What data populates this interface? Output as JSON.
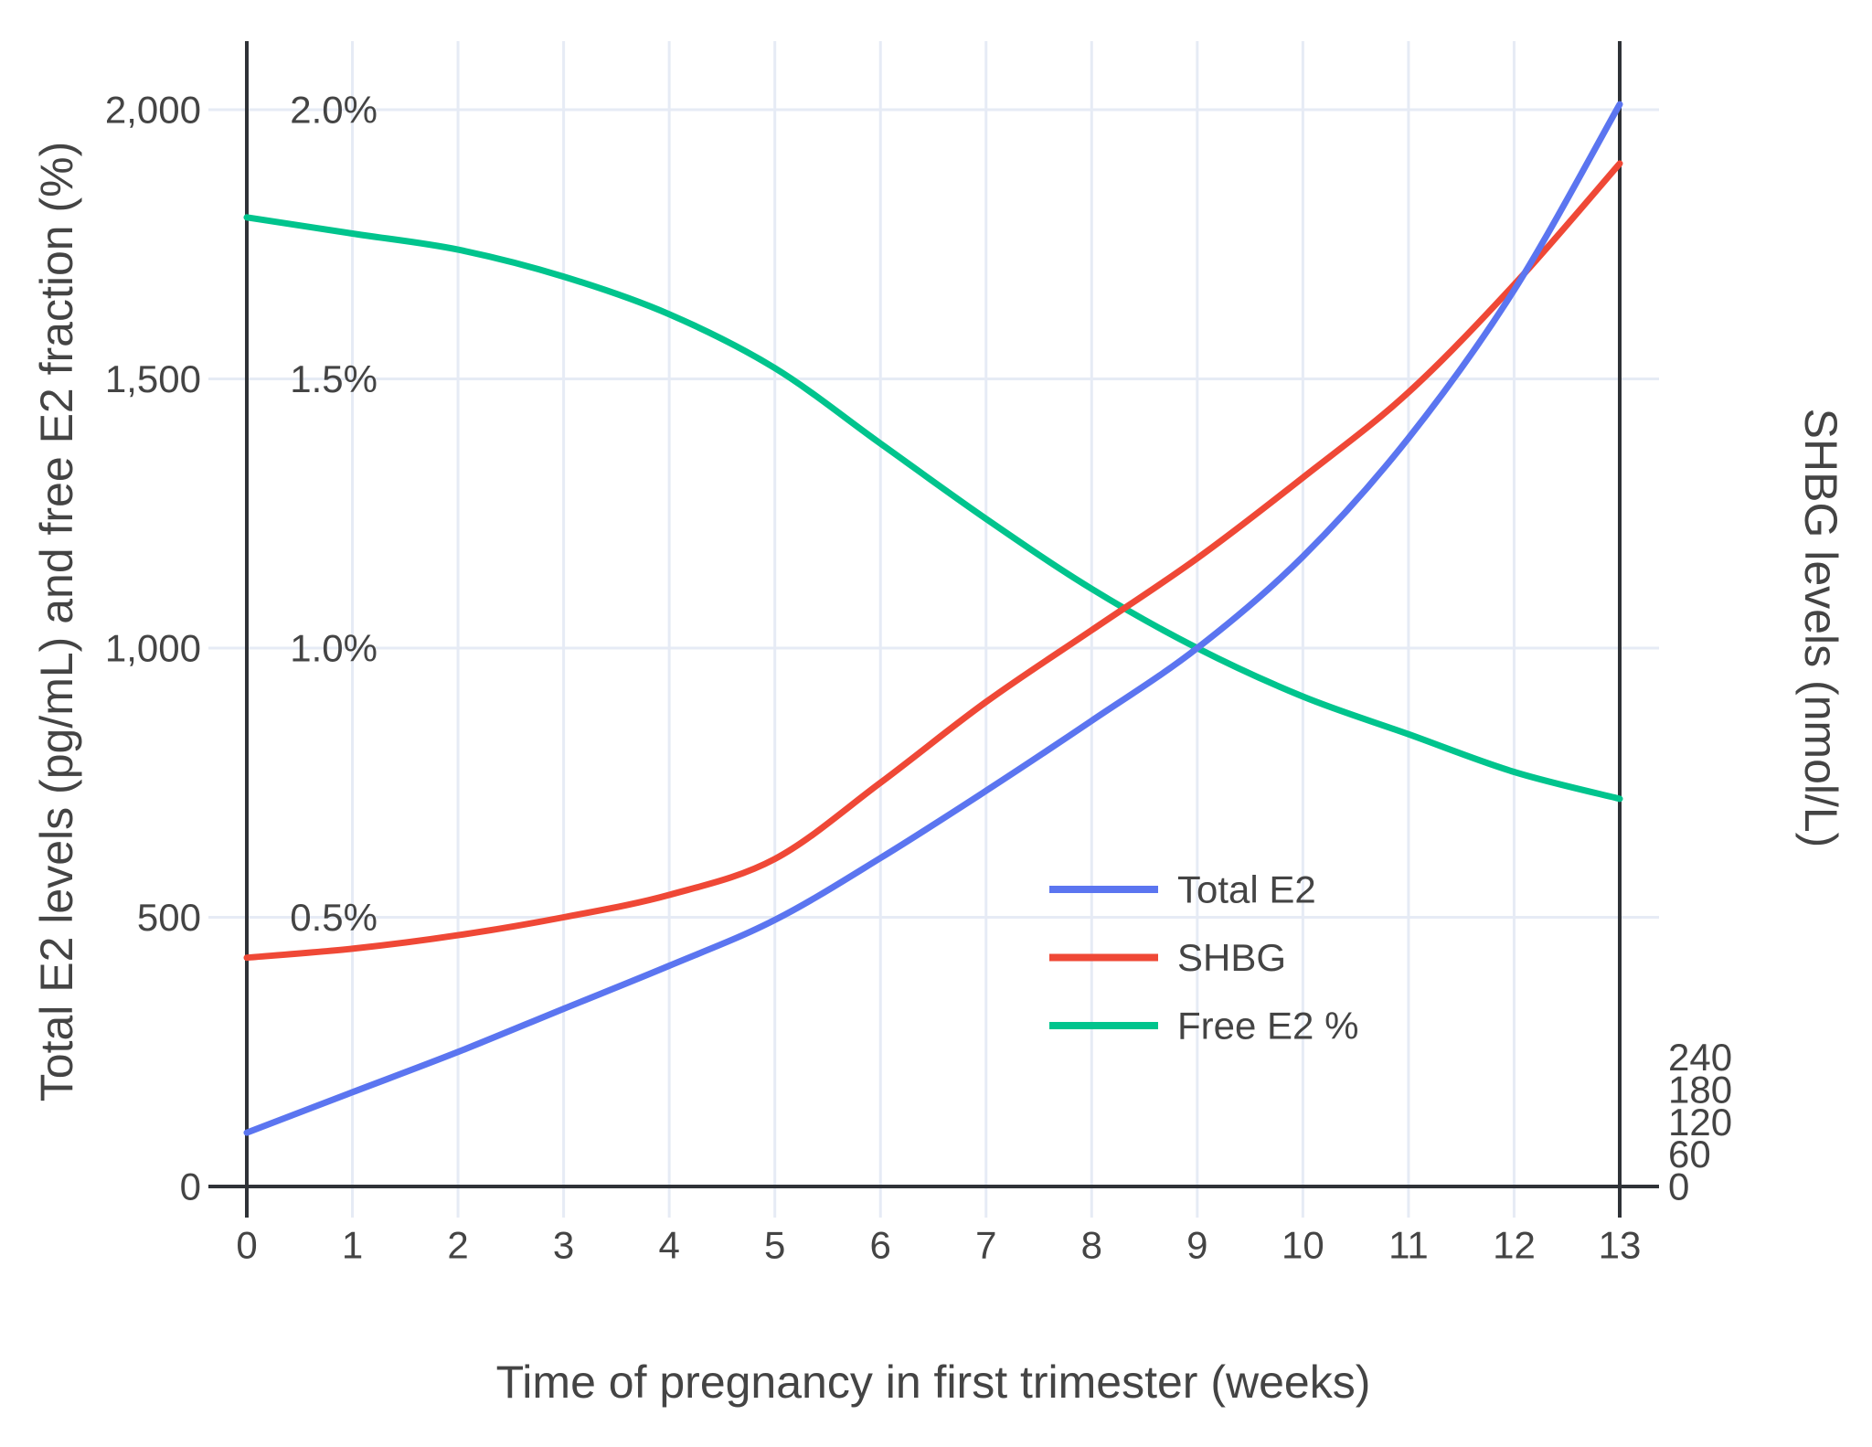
{
  "chart_data": {
    "type": "line",
    "title": "",
    "xlabel": "Time of pregnancy in first trimester (weeks)",
    "ylabel_left": "Total E2 levels (pg/mL) and free E2 fraction (%)",
    "ylabel_right": "SHBG levels (nmol/L)",
    "x": [
      0,
      1,
      2,
      3,
      4,
      5,
      6,
      7,
      8,
      9,
      10,
      11,
      12,
      13
    ],
    "xlim": [
      0,
      13
    ],
    "ylim_left": [
      0,
      2000
    ],
    "ylim_right": [
      0,
      240
    ],
    "grid": true,
    "legend_position": "inside-right-middle",
    "series": [
      {
        "name": "Total E2",
        "axis": "left",
        "unit": "pg/mL",
        "color": "#5B75F0",
        "values": [
          100,
          175,
          250,
          330,
          410,
          495,
          610,
          735,
          865,
          1000,
          1170,
          1390,
          1665,
          2010
        ]
      },
      {
        "name": "SHBG",
        "axis": "right",
        "unit": "nmol/L",
        "color": "#EF4836",
        "values": [
          51,
          53,
          56,
          60,
          65,
          73,
          90,
          108,
          124,
          140,
          158,
          177,
          201,
          228
        ]
      },
      {
        "name": "Free E2 %",
        "axis": "left-percent",
        "unit": "%",
        "color": "#00C48D",
        "values": [
          1.8,
          1.77,
          1.74,
          1.69,
          1.62,
          1.52,
          1.38,
          1.24,
          1.11,
          1.0,
          0.91,
          0.84,
          0.77,
          0.72
        ]
      }
    ],
    "left_ticks": [
      {
        "v": 0,
        "label": "0"
      },
      {
        "v": 500,
        "label": "500"
      },
      {
        "v": 1000,
        "label": "1,000"
      },
      {
        "v": 1500,
        "label": "1,500"
      },
      {
        "v": 2000,
        "label": "2,000"
      }
    ],
    "percent_labels": [
      {
        "v": 500,
        "label": "0.5%"
      },
      {
        "v": 1000,
        "label": "1.0%"
      },
      {
        "v": 1500,
        "label": "1.5%"
      },
      {
        "v": 2000,
        "label": "2.0%"
      }
    ],
    "right_ticks": [
      {
        "v": 0,
        "label": "0"
      },
      {
        "v": 60,
        "label": "60"
      },
      {
        "v": 120,
        "label": "120"
      },
      {
        "v": 180,
        "label": "180"
      },
      {
        "v": 240,
        "label": "240"
      }
    ],
    "x_tick_labels": [
      "0",
      "1",
      "2",
      "3",
      "4",
      "5",
      "6",
      "7",
      "8",
      "9",
      "10",
      "11",
      "12",
      "13"
    ]
  },
  "colors": {
    "background": "#FFFFFF",
    "grid": "#E6EBF5",
    "axis": "#2F3237",
    "text": "#444444",
    "total_e2": "#5B75F0",
    "shbg": "#EF4836",
    "free_e2_pct": "#00C48D"
  }
}
